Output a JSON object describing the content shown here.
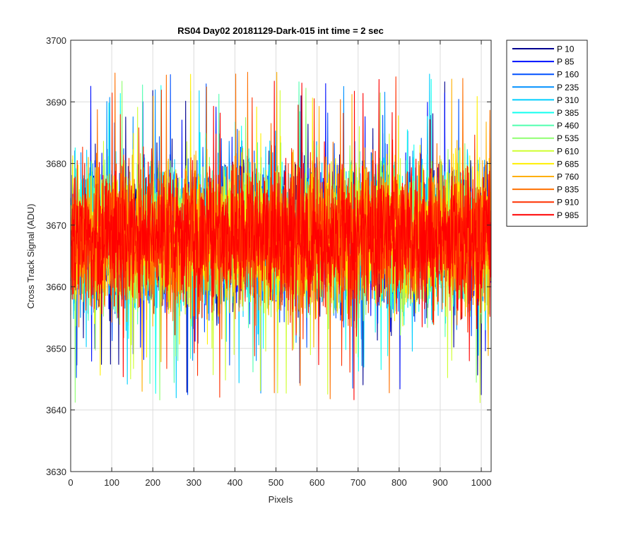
{
  "chart_data": {
    "type": "line",
    "title": "RS04 Day02 20181129-Dark-015 int time = 2 sec",
    "xlabel": "Pixels",
    "ylabel": "Cross Track Signal (ADU)",
    "xlim": [
      0,
      1024
    ],
    "ylim": [
      3630,
      3700
    ],
    "xticks": [
      0,
      100,
      200,
      300,
      400,
      500,
      600,
      700,
      800,
      900,
      1000
    ],
    "yticks": [
      3630,
      3640,
      3650,
      3660,
      3670,
      3680,
      3690,
      3700
    ],
    "grid": true,
    "legend_position": "outside-right",
    "noise": {
      "mean": 3668,
      "spread": 9,
      "min": 3640,
      "max": 3700,
      "samples_per_series": 1024
    },
    "series": [
      {
        "name": "P 10",
        "color": "#00008f"
      },
      {
        "name": "P 85",
        "color": "#0010ff"
      },
      {
        "name": "P 160",
        "color": "#0050ff"
      },
      {
        "name": "P 235",
        "color": "#0090ff"
      },
      {
        "name": "P 310",
        "color": "#00cfff"
      },
      {
        "name": "P 385",
        "color": "#10ffef"
      },
      {
        "name": "P 460",
        "color": "#50ffaf"
      },
      {
        "name": "P 535",
        "color": "#8fff70"
      },
      {
        "name": "P 610",
        "color": "#cfff30"
      },
      {
        "name": "P 685",
        "color": "#ffef00"
      },
      {
        "name": "P 760",
        "color": "#ffaf00"
      },
      {
        "name": "P 835",
        "color": "#ff7000"
      },
      {
        "name": "P 910",
        "color": "#ff3000"
      },
      {
        "name": "P 985",
        "color": "#ff0000"
      }
    ]
  }
}
